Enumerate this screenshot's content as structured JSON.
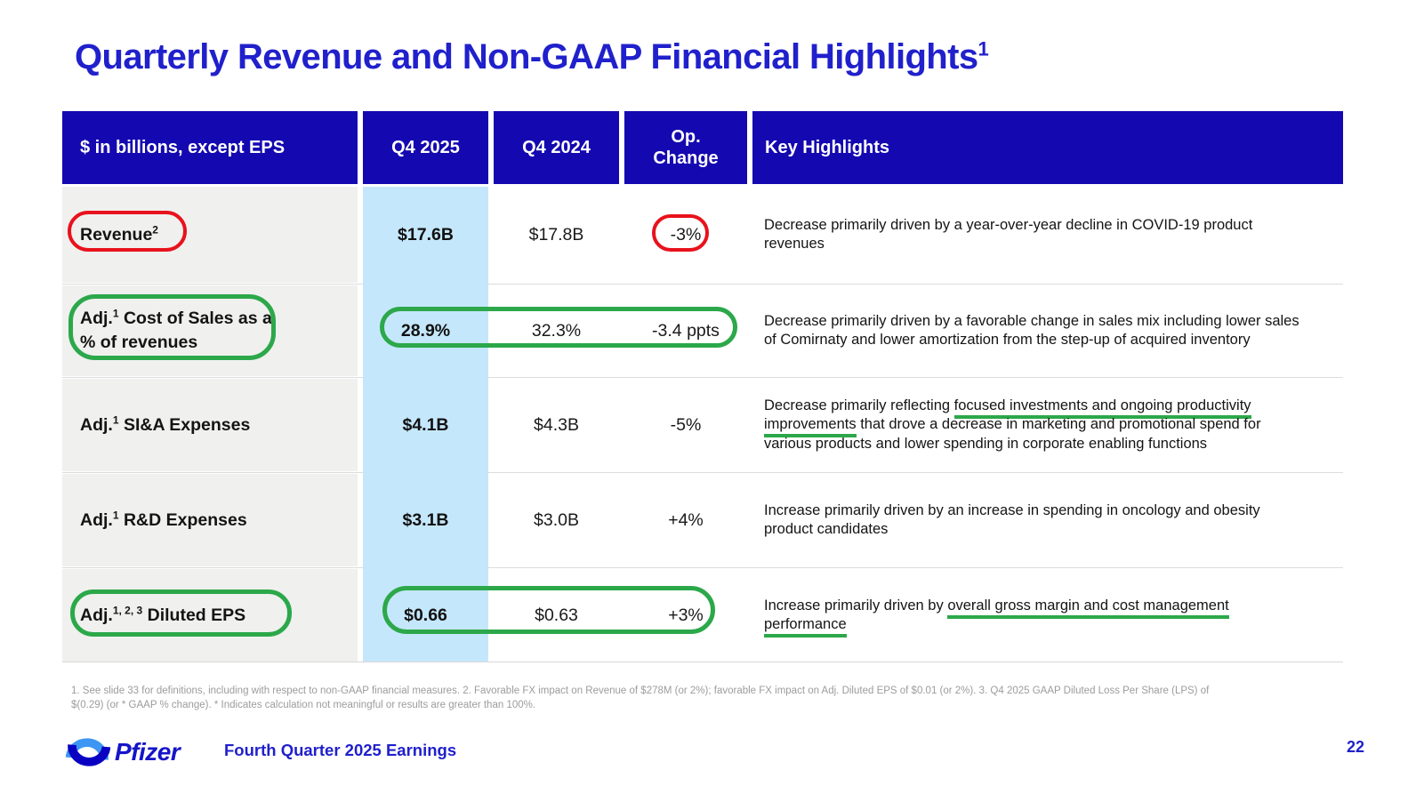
{
  "slide": {
    "title": {
      "text": "Quarterly Revenue and Non-GAAP Financial Highlights",
      "superscript": "1"
    },
    "page_number": "22",
    "footer": {
      "deck_title": "Fourth Quarter 2025 Earnings",
      "logo_text": "Pfizer"
    },
    "footnote_lines": [
      "1.  See slide 33 for definitions, including with respect to non-GAAP financial measures. 2. Favorable FX impact on Revenue of $278M (or 2%); favorable FX impact on Adj. Diluted EPS of $0.01 (or 2%). 3. Q4 2025 GAAP Diluted Loss Per Share (LPS) of",
      "$(0.29) (or * GAAP % change). * Indicates calculation not meaningful or results are greater than 100%."
    ]
  },
  "table": {
    "headers": [
      "$ in billions, except EPS",
      "Q4 2025",
      "Q4 2024",
      "Op.\nChange",
      "Key Highlights"
    ],
    "rows": [
      {
        "label": {
          "prefix": "Revenue",
          "sup": "2",
          "rest": ""
        },
        "q4_2025": "$17.6B",
        "q4_2024": "$17.8B",
        "op_change": "-3%",
        "highlight_lines": [
          [
            {
              "t": "Decrease primarily driven by a year-over-year decline in COVID-19 product"
            }
          ],
          [
            {
              "t": "revenues"
            }
          ]
        ]
      },
      {
        "label": {
          "prefix": "Adj.",
          "sup": "1",
          "rest": " Cost of Sales as a % of revenues"
        },
        "q4_2025": "28.9%",
        "q4_2024": "32.3%",
        "op_change": "-3.4 ppts",
        "highlight_lines": [
          [
            {
              "t": "Decrease primarily driven by a favorable change in sales mix including lower sales"
            }
          ],
          [
            {
              "t": "of Comirnaty and lower amortization from the step-up of acquired inventory"
            }
          ]
        ]
      },
      {
        "label": {
          "prefix": "Adj.",
          "sup": "1",
          "rest": " SI&A Expenses"
        },
        "q4_2025": "$4.1B",
        "q4_2024": "$4.3B",
        "op_change": "-5%",
        "highlight_lines": [
          [
            {
              "t": "Decrease primarily reflecting "
            },
            {
              "t": "focused investments and ongoing productivity",
              "u": true
            }
          ],
          [
            {
              "t": "improvements",
              "u": true
            },
            {
              "t": " that drove a decrease in marketing and promotional spend for"
            }
          ],
          [
            {
              "t": "various products and lower spending in corporate enabling functions"
            }
          ]
        ]
      },
      {
        "label": {
          "prefix": "Adj.",
          "sup": "1",
          "rest": " R&D Expenses"
        },
        "q4_2025": "$3.1B",
        "q4_2024": "$3.0B",
        "op_change": "+4%",
        "highlight_lines": [
          [
            {
              "t": "Increase primarily driven by an increase in spending in oncology and obesity"
            }
          ],
          [
            {
              "t": "product candidates"
            }
          ]
        ]
      },
      {
        "label": {
          "prefix": "Adj.",
          "sup": "1, 2, 3",
          "rest": " Diluted EPS"
        },
        "q4_2025": "$0.66",
        "q4_2024": "$0.63",
        "op_change": "+3%",
        "highlight_lines": [
          [
            {
              "t": "Increase primarily driven by "
            },
            {
              "t": "overall gross margin and cost management",
              "u": true
            }
          ],
          [
            {
              "t": "performance",
              "u": true
            }
          ]
        ]
      }
    ]
  },
  "annotations": {
    "ovals": [
      {
        "color": "red",
        "target": "revenue-label"
      },
      {
        "color": "red",
        "target": "revenue-op-change"
      },
      {
        "color": "green",
        "target": "cost-of-sales-label"
      },
      {
        "color": "green",
        "target": "cost-of-sales-values"
      },
      {
        "color": "green",
        "target": "diluted-eps-label"
      },
      {
        "color": "green",
        "target": "diluted-eps-values"
      }
    ]
  },
  "colors": {
    "header_blue": "#1408B0",
    "title_blue": "#2020CC",
    "accent_light_blue": "#C5E7FB",
    "row_gray": "#F0F0EF",
    "annotation_red": "#E8121C",
    "annotation_green": "#2CA84A",
    "footnote_gray": "#9C9C9C",
    "pfizer_blue": "#1414C8",
    "pfizer_light_blue": "#3E96F3"
  }
}
